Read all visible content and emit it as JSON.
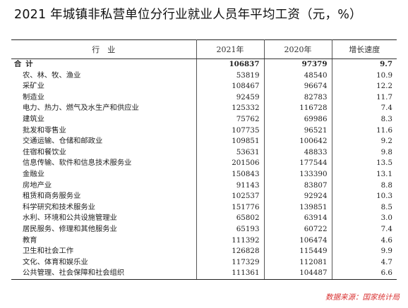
{
  "title": "2021 年城镇非私营单位分行业就业人员年平均工资（元，%）",
  "headers": [
    "行　业",
    "2021年",
    "2020年",
    "增长速度"
  ],
  "total": {
    "industry": "合计",
    "y2021": "106837",
    "y2020": "97379",
    "growth": "9.7"
  },
  "rows": [
    {
      "industry": "农、林、牧、渔业",
      "y2021": "53819",
      "y2020": "48540",
      "growth": "10.9"
    },
    {
      "industry": "采矿业",
      "y2021": "108467",
      "y2020": "96674",
      "growth": "12.2"
    },
    {
      "industry": "制造业",
      "y2021": "92459",
      "y2020": "82783",
      "growth": "11.7"
    },
    {
      "industry": "电力、热力、燃气及水生产和供应业",
      "y2021": "125332",
      "y2020": "116728",
      "growth": "7.4"
    },
    {
      "industry": "建筑业",
      "y2021": "75762",
      "y2020": "69986",
      "growth": "8.3"
    },
    {
      "industry": "批发和零售业",
      "y2021": "107735",
      "y2020": "96521",
      "growth": "11.6"
    },
    {
      "industry": "交通运输、仓储和邮政业",
      "y2021": "109851",
      "y2020": "100642",
      "growth": "9.2"
    },
    {
      "industry": "住宿和餐饮业",
      "y2021": "53631",
      "y2020": "48833",
      "growth": "9.8"
    },
    {
      "industry": "信息传输、软件和信息技术服务业",
      "y2021": "201506",
      "y2020": "177544",
      "growth": "13.5"
    },
    {
      "industry": "金融业",
      "y2021": "150843",
      "y2020": "133390",
      "growth": "13.1"
    },
    {
      "industry": "房地产业",
      "y2021": "91143",
      "y2020": "83807",
      "growth": "8.8"
    },
    {
      "industry": "租赁和商务服务业",
      "y2021": "102537",
      "y2020": "92924",
      "growth": "10.3"
    },
    {
      "industry": "科学研究和技术服务业",
      "y2021": "151776",
      "y2020": "139851",
      "growth": "8.5"
    },
    {
      "industry": "水利、环境和公共设施管理业",
      "y2021": "65802",
      "y2020": "63914",
      "growth": "3.0"
    },
    {
      "industry": "居民服务、修理和其他服务业",
      "y2021": "65193",
      "y2020": "60722",
      "growth": "7.4"
    },
    {
      "industry": "教育",
      "y2021": "111392",
      "y2020": "106474",
      "growth": "4.6"
    },
    {
      "industry": "卫生和社会工作",
      "y2021": "126828",
      "y2020": "115449",
      "growth": "9.9"
    },
    {
      "industry": "文化、体育和娱乐业",
      "y2021": "117329",
      "y2020": "112081",
      "growth": "4.7"
    },
    {
      "industry": "公共管理、社会保障和社会组织",
      "y2021": "111361",
      "y2020": "104487",
      "growth": "6.6"
    }
  ],
  "source": "数据来源：国家统计局"
}
